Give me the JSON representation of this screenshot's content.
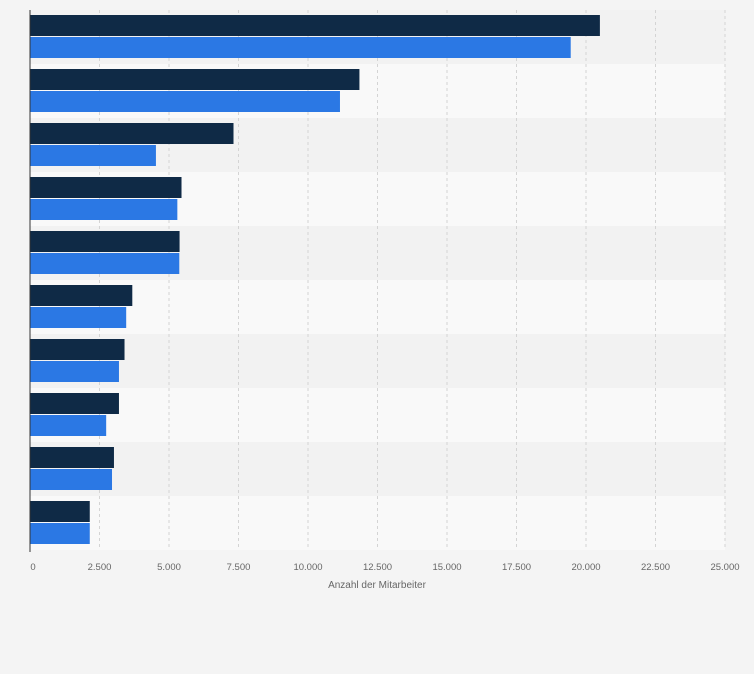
{
  "chart_data": {
    "type": "bar",
    "orientation": "horizontal",
    "categories": [
      "",
      "",
      "",
      "",
      "",
      "",
      "",
      "",
      "",
      ""
    ],
    "series": [
      {
        "values": [
          20500,
          11850,
          7320,
          5450,
          5380,
          3680,
          3400,
          3200,
          3020,
          2150
        ],
        "color": "#0f2a46"
      },
      {
        "values": [
          19450,
          11150,
          4530,
          5300,
          5370,
          3460,
          3200,
          2740,
          2950,
          2150
        ],
        "color": "#2b78e4"
      }
    ],
    "xlabel": "Anzahl der Mitarbeiter",
    "xlim": [
      0,
      25000
    ],
    "xticks": [
      0,
      2500,
      5000,
      7500,
      10000,
      12500,
      15000,
      17500,
      20000,
      22500,
      25000
    ],
    "xtick_labels": [
      "0",
      "2.500",
      "5.000",
      "7.500",
      "10.000",
      "12.500",
      "15.000",
      "17.500",
      "20.000",
      "22.500",
      "25.000"
    ],
    "grid": true,
    "legend": "none",
    "row_band_colors": [
      "#f2f2f2",
      "#f9f9f9"
    ]
  }
}
